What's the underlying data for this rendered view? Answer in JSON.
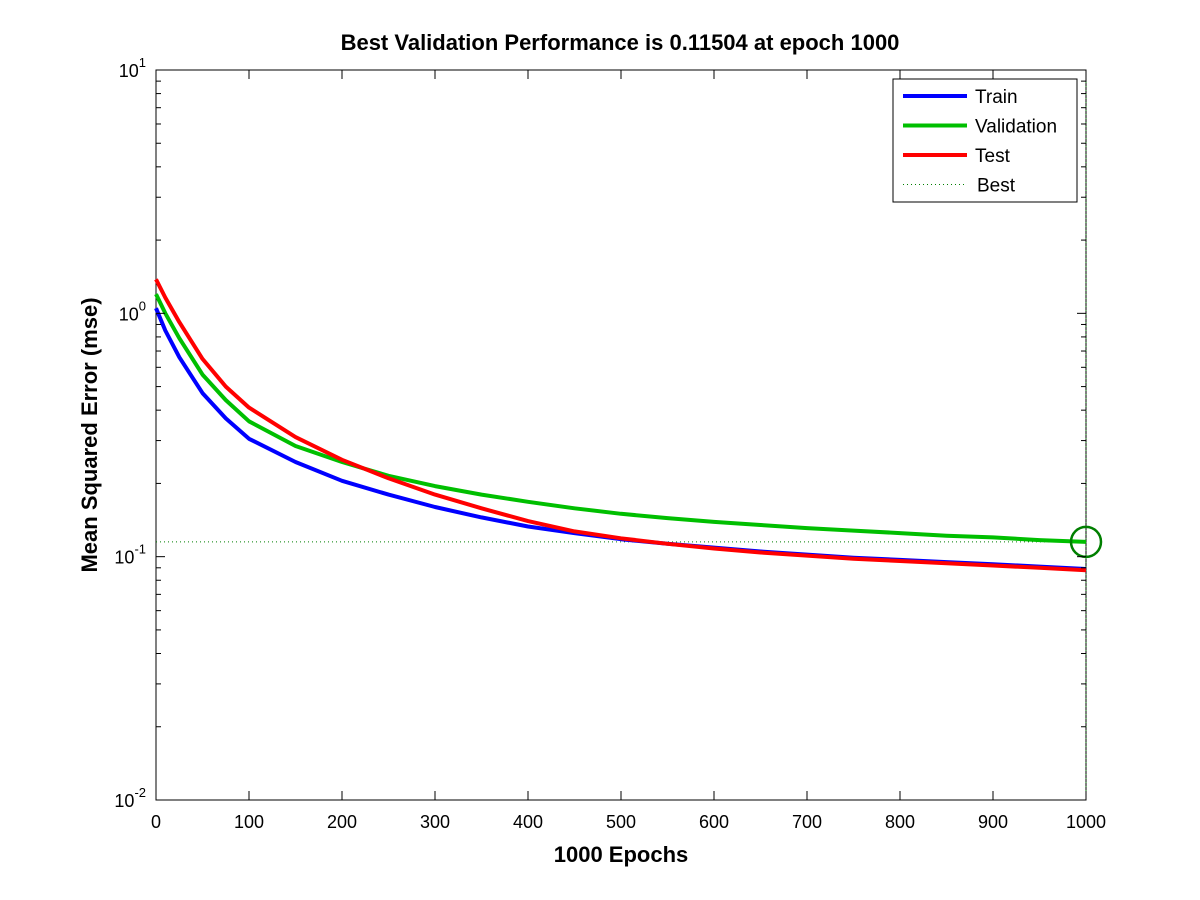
{
  "chart_data": {
    "type": "line",
    "title": "Best Validation Performance is 0.11504 at epoch 1000",
    "xlabel": "1000 Epochs",
    "ylabel": "Mean Squared Error  (mse)",
    "xlim": [
      0,
      1000
    ],
    "ylim": [
      0.01,
      10
    ],
    "yscale": "log",
    "grid": false,
    "legend_position": "top-right",
    "x_ticks": [
      "0",
      "100",
      "200",
      "300",
      "400",
      "500",
      "600",
      "700",
      "800",
      "900",
      "1000"
    ],
    "y_ticks": [
      {
        "base": "10",
        "exp": "1",
        "value": 10
      },
      {
        "base": "10",
        "exp": "0",
        "value": 1
      },
      {
        "base": "10",
        "exp": "-1",
        "value": 0.1
      },
      {
        "base": "10",
        "exp": "-2",
        "value": 0.01
      }
    ],
    "x": [
      0,
      10,
      25,
      50,
      75,
      100,
      150,
      200,
      250,
      300,
      350,
      400,
      450,
      500,
      550,
      600,
      650,
      700,
      750,
      800,
      850,
      900,
      950,
      1000
    ],
    "series": [
      {
        "name": "Train",
        "color": "#0000ff",
        "values": [
          1.05,
          0.85,
          0.66,
          0.47,
          0.37,
          0.305,
          0.245,
          0.205,
          0.18,
          0.16,
          0.145,
          0.133,
          0.125,
          0.118,
          0.113,
          0.109,
          0.105,
          0.102,
          0.099,
          0.097,
          0.095,
          0.093,
          0.091,
          0.089
        ]
      },
      {
        "name": "Validation",
        "color": "#00bf00",
        "values": [
          1.2,
          1.0,
          0.79,
          0.56,
          0.44,
          0.36,
          0.285,
          0.245,
          0.215,
          0.195,
          0.18,
          0.168,
          0.158,
          0.15,
          0.144,
          0.139,
          0.135,
          0.131,
          0.128,
          0.125,
          0.122,
          0.12,
          0.117,
          0.115
        ]
      },
      {
        "name": "Test",
        "color": "#ff0000",
        "values": [
          1.38,
          1.16,
          0.92,
          0.65,
          0.5,
          0.41,
          0.31,
          0.25,
          0.21,
          0.18,
          0.158,
          0.14,
          0.127,
          0.119,
          0.113,
          0.108,
          0.104,
          0.101,
          0.098,
          0.096,
          0.094,
          0.092,
          0.09,
          0.088
        ]
      }
    ],
    "best": {
      "name": "Best",
      "epoch": 1000,
      "value": 0.11504,
      "color": "#007f00"
    }
  }
}
